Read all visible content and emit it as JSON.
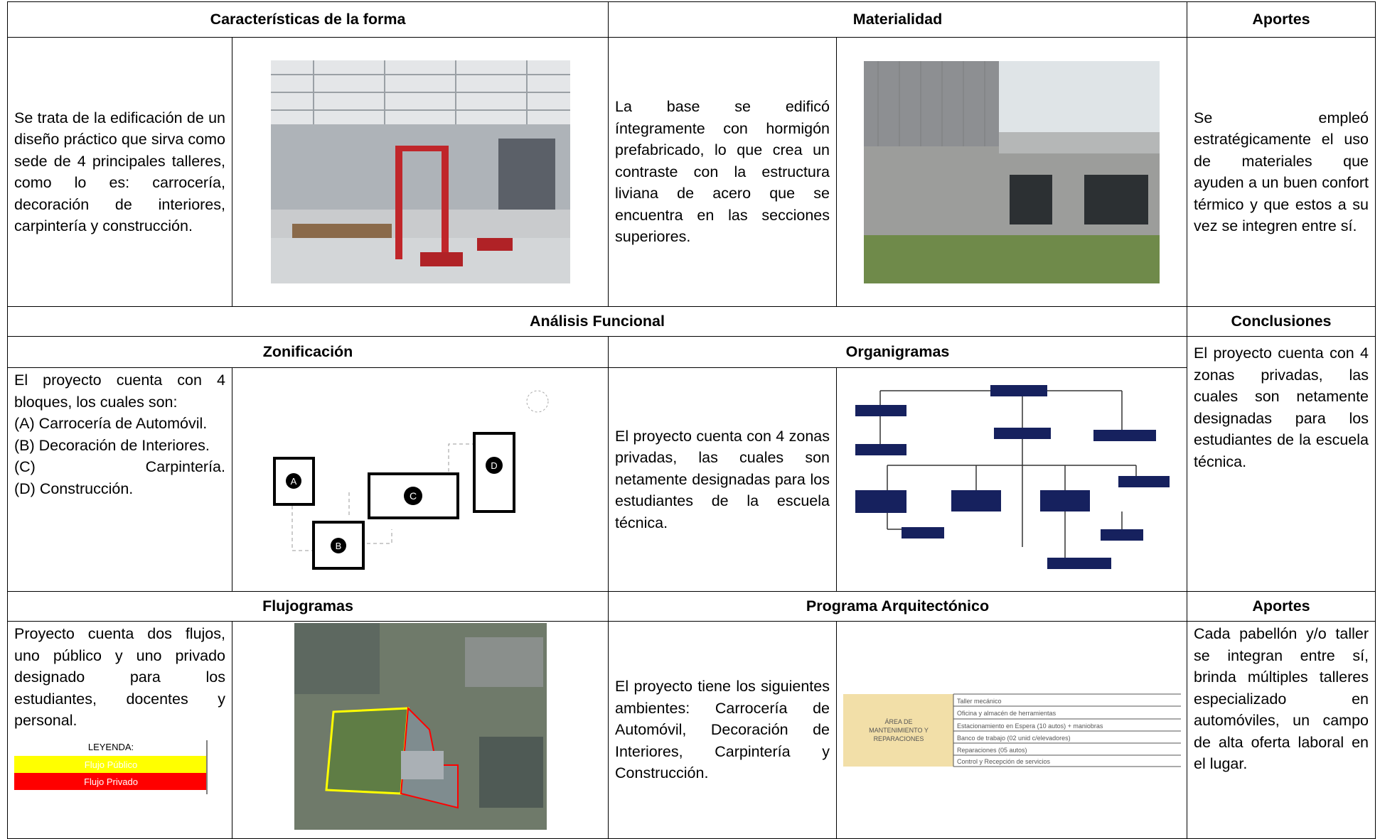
{
  "header": {
    "forma": "Características de la forma",
    "materialidad": "Materialidad",
    "aportes": "Aportes"
  },
  "row1": {
    "forma": "Se trata de la edificación de un diseño práctico que sirva como sede de 4 principales talleres, como lo es: carrocería, decoración de interiores, carpintería y construcción.",
    "materialidad": "La base se edificó íntegramente con hormigón prefabricado, lo que crea un contraste con la estructura liviana de acero que se encuentra en las secciones superiores.",
    "aportes": "Se empleó estratégicamente el uso de materiales que ayuden a un buen confort térmico y que estos a su vez se integren entre sí."
  },
  "functional": {
    "title": "Análisis Funcional",
    "conclusions_title": "Conclusiones",
    "zonificacion_title": "Zonificación",
    "organigramas_title": "Organigramas"
  },
  "row3": {
    "zonificacion": [
      "El proyecto cuenta con 4 bloques, los cuales son:",
      "(A) Carrocería de Automóvil.",
      "(B) Decoración de Interiores.",
      "(C) Carpintería.",
      "(D) Construcción."
    ],
    "zones": [
      "A",
      "B",
      "C",
      "D"
    ],
    "organigramas": "El proyecto cuenta con 4 zonas privadas, las cuales son netamente designadas para los estudiantes de la escuela técnica.",
    "conclusiones": "El proyecto cuenta con 4 zonas privadas, las cuales son netamente designadas para los estudiantes de la escuela técnica."
  },
  "header2": {
    "flujogramas": "Flujogramas",
    "programa": "Programa Arquitectónico",
    "aportes": "Aportes"
  },
  "row5": {
    "flujogramas": "Proyecto cuenta dos flujos, uno público y uno privado designado para los estudiantes, docentes y personal.",
    "legend": {
      "title": "LEYENDA:",
      "public": "Flujo Público",
      "private": "Flujo Privado"
    },
    "programa": "El proyecto tiene los siguientes ambientes: Carrocería de Automóvil, Decoración de Interiores, Carpintería y Construcción.",
    "program_table": {
      "area": [
        "ÁREA DE",
        "MANTENIMIENTO Y",
        "REPARACIONES"
      ],
      "items": [
        "Taller mecánico",
        "Oficina y almacén de herramientas",
        "Estacionamiento en Espera (10 autos) + maniobras",
        "Banco de trabajo (02 unid c/elevadores)",
        "Reparaciones (05 autos)",
        "Control y Recepción de servicios"
      ]
    },
    "aportes": "Cada pabellón y/o taller se integran entre sí, brinda múltiples talleres especializado en automóviles, un campo de alta oferta laboral en el lugar."
  }
}
